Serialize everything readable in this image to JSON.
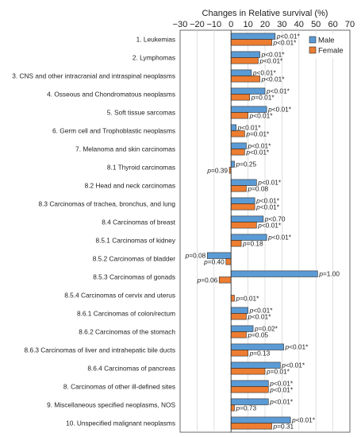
{
  "chart_data": {
    "type": "bar",
    "orientation": "horizontal",
    "title": "",
    "xlabel": "Changes in Relative survival (%)",
    "ylabel": "",
    "xlim": [
      -30,
      70
    ],
    "xticks": [
      -30,
      -20,
      -10,
      0,
      10,
      20,
      30,
      40,
      50,
      60,
      70
    ],
    "grid": true,
    "legend_position": "top-right",
    "categories": [
      "1. Leukemias",
      "2. Lymphomas",
      "3. CNS and other intracranial and intraspinal neoplasms",
      "4. Osseous and Chondromatous neoplasms",
      "5. Soft tissue sarcomas",
      "6. Germ cell and Trophoblastic neoplasms",
      "7. Melanoma and skin carcinomas",
      "8.1 Thyroid carcinomas",
      "8.2 Head and neck carcinomas",
      "8.3 Carcinomas of trachea, bronchus, and lung",
      "8.4 Carcinomas of breast",
      "8.5.1 Carcinomas of kidney",
      "8.5.2 Carcinomas of bladder",
      "8.5.3 Carcinomas of gonads",
      "8.5.4 Carcinomas of cervix and uterus",
      "8.6.1 Carcinomas of colon/rectum",
      "8.6.2 Carcinomas of the stomach",
      "8.6.3 Carcinomas of liver and intrahepatic bile ducts",
      "8.6.4 Carcinomas of pancreas",
      "8. Carcinomas of other ill-defined sites",
      "9. Miscellaneous specified neoplasms, NOS",
      "10. Unspecified malignant neoplasms"
    ],
    "series": [
      {
        "name": "Male",
        "color": "#5b9bd5",
        "values": [
          26,
          17,
          12,
          20,
          21,
          3,
          9,
          2,
          15,
          14,
          19,
          21,
          -14,
          51,
          null,
          10,
          13,
          31,
          29,
          22,
          22,
          35
        ],
        "p_labels": [
          "p<0.01*",
          "p<0.01*",
          "p<0.01*",
          "p<0.01*",
          "p<0.01*",
          "p<0.01*",
          "p<0.01*",
          "p=0.25",
          "p<0.01*",
          "p<0.01*",
          "p<0.70",
          "p<0.01*",
          "p=0.08",
          "p=1.00",
          "",
          "p<0.01*",
          "p=0.02*",
          "p<0.01*",
          "p<0.01*",
          "p<0.01*",
          "p<0.01*",
          "p<0.01*"
        ]
      },
      {
        "name": "Female",
        "color": "#ed7d31",
        "values": [
          24,
          16,
          17,
          11,
          10,
          8,
          8,
          -1,
          9,
          14,
          15,
          6,
          -3,
          -7,
          2,
          9,
          9,
          10,
          20,
          22,
          2,
          24
        ],
        "p_labels": [
          "p<0.01*",
          "p<0.01*",
          "p<0.01*",
          "p=0.01*",
          "p<0.01*",
          "p=0.01*",
          "p<0.01*",
          "p=0.39",
          "p=0.08",
          "p<0.01*",
          "p<0.01*",
          "p=0.18",
          "p=0.40",
          "p=0.06",
          "p=0.01*",
          "p<0.01*",
          "p=0.05",
          "p=0.13",
          "p=0.01*",
          "p<0.01*",
          "p=0.73",
          "p=0.31"
        ]
      }
    ]
  }
}
